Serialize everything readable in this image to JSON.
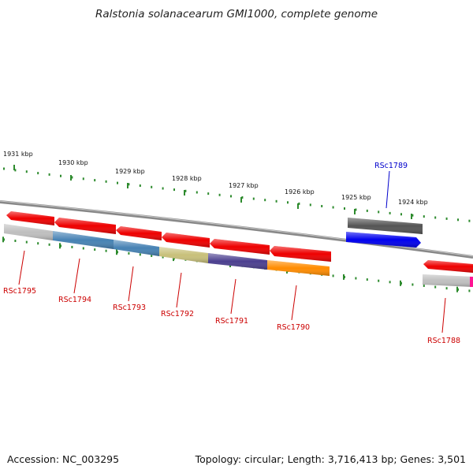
{
  "title": "Ralstonia solanacearum GMI1000, complete genome",
  "footer": {
    "accession": "Accession: NC_003295",
    "summary": "Topology: circular; Length: 3,716,413 bp; Genes: 3,501"
  },
  "colors": {
    "tick": "#2e8b2e",
    "backbone": "#8a8a8a",
    "label_default": "#cc0000",
    "label_highlight": "#0000cc"
  },
  "kbp_ticks": [
    {
      "label": "1931 kbp"
    },
    {
      "label": "1930 kbp"
    },
    {
      "label": "1929 kbp"
    },
    {
      "label": "1928 kbp"
    },
    {
      "label": "1927 kbp"
    },
    {
      "label": "1926 kbp"
    },
    {
      "label": "1925 kbp"
    },
    {
      "label": "1924 kbp"
    }
  ],
  "genes": [
    {
      "label": "RSc1795",
      "color": "#bfbfbf",
      "strand": "-"
    },
    {
      "label": "RSc1794",
      "color": "#4682b4",
      "strand": "-"
    },
    {
      "label": "RSc1793",
      "color": "#4682b4",
      "strand": "-"
    },
    {
      "label": "RSc1792",
      "color": "#c8c07a",
      "strand": "-"
    },
    {
      "label": "RSc1791",
      "color": "#4b3f8f",
      "strand": "-"
    },
    {
      "label": "RSc1790",
      "color": "#ff8c00",
      "strand": "-"
    },
    {
      "label": "RSc1789",
      "color": "#0000ee",
      "strand": "+"
    },
    {
      "label": "RSc1788",
      "color": "#bfbfbf",
      "strand": "-"
    }
  ]
}
